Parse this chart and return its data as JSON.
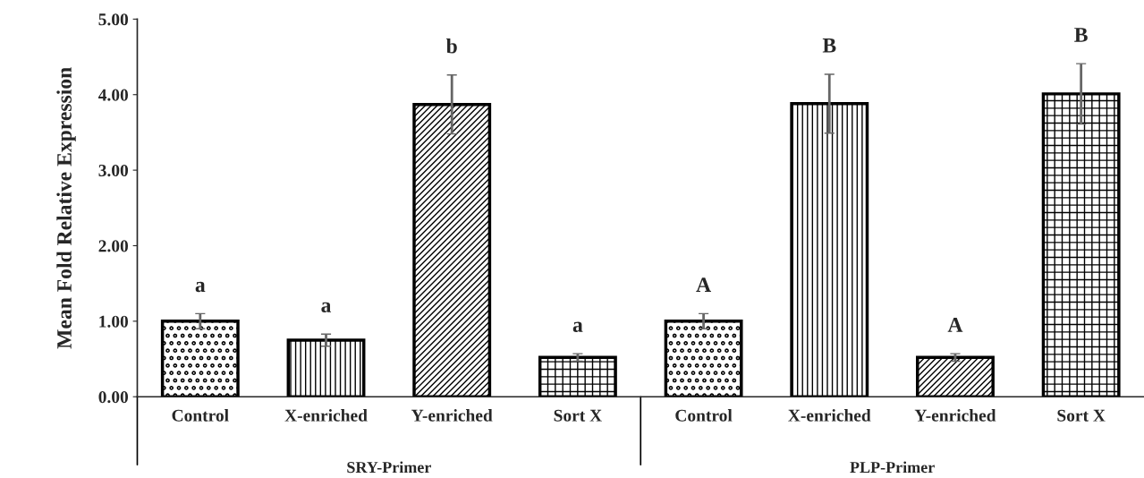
{
  "chart_data": {
    "type": "bar",
    "ylabel": "Mean Fold Relative Expression",
    "categories": [
      "Control",
      "X-enriched",
      "Y-enriched",
      "Sort X",
      "Control",
      "X-enriched",
      "Y-enriched",
      "Sort X"
    ],
    "values": [
      1.0,
      0.75,
      3.87,
      0.52,
      1.0,
      3.88,
      0.52,
      4.01
    ],
    "errors": [
      0.1,
      0.08,
      0.39,
      0.05,
      0.1,
      0.39,
      0.05,
      0.4
    ],
    "value_labels": [
      "a",
      "a",
      "b",
      "a",
      "A",
      "B",
      "A",
      "B"
    ],
    "colors": [
      "#000000",
      "#000000",
      "#000000",
      "#000000",
      "#000000",
      "#000000",
      "#000000",
      "#000000"
    ],
    "annotations": [
      "SRY-Primer",
      "PLP-Primer"
    ],
    "ylim": [
      0,
      5
    ],
    "yticks": [
      {
        "value": 0,
        "label": "0.00"
      },
      {
        "value": 1,
        "label": "1.00"
      },
      {
        "value": 2,
        "label": "2.00"
      },
      {
        "value": 3,
        "label": "3.00"
      },
      {
        "value": 4,
        "label": "4.00"
      },
      {
        "value": 5,
        "label": "5.00"
      }
    ],
    "grid": false,
    "legend": false
  }
}
